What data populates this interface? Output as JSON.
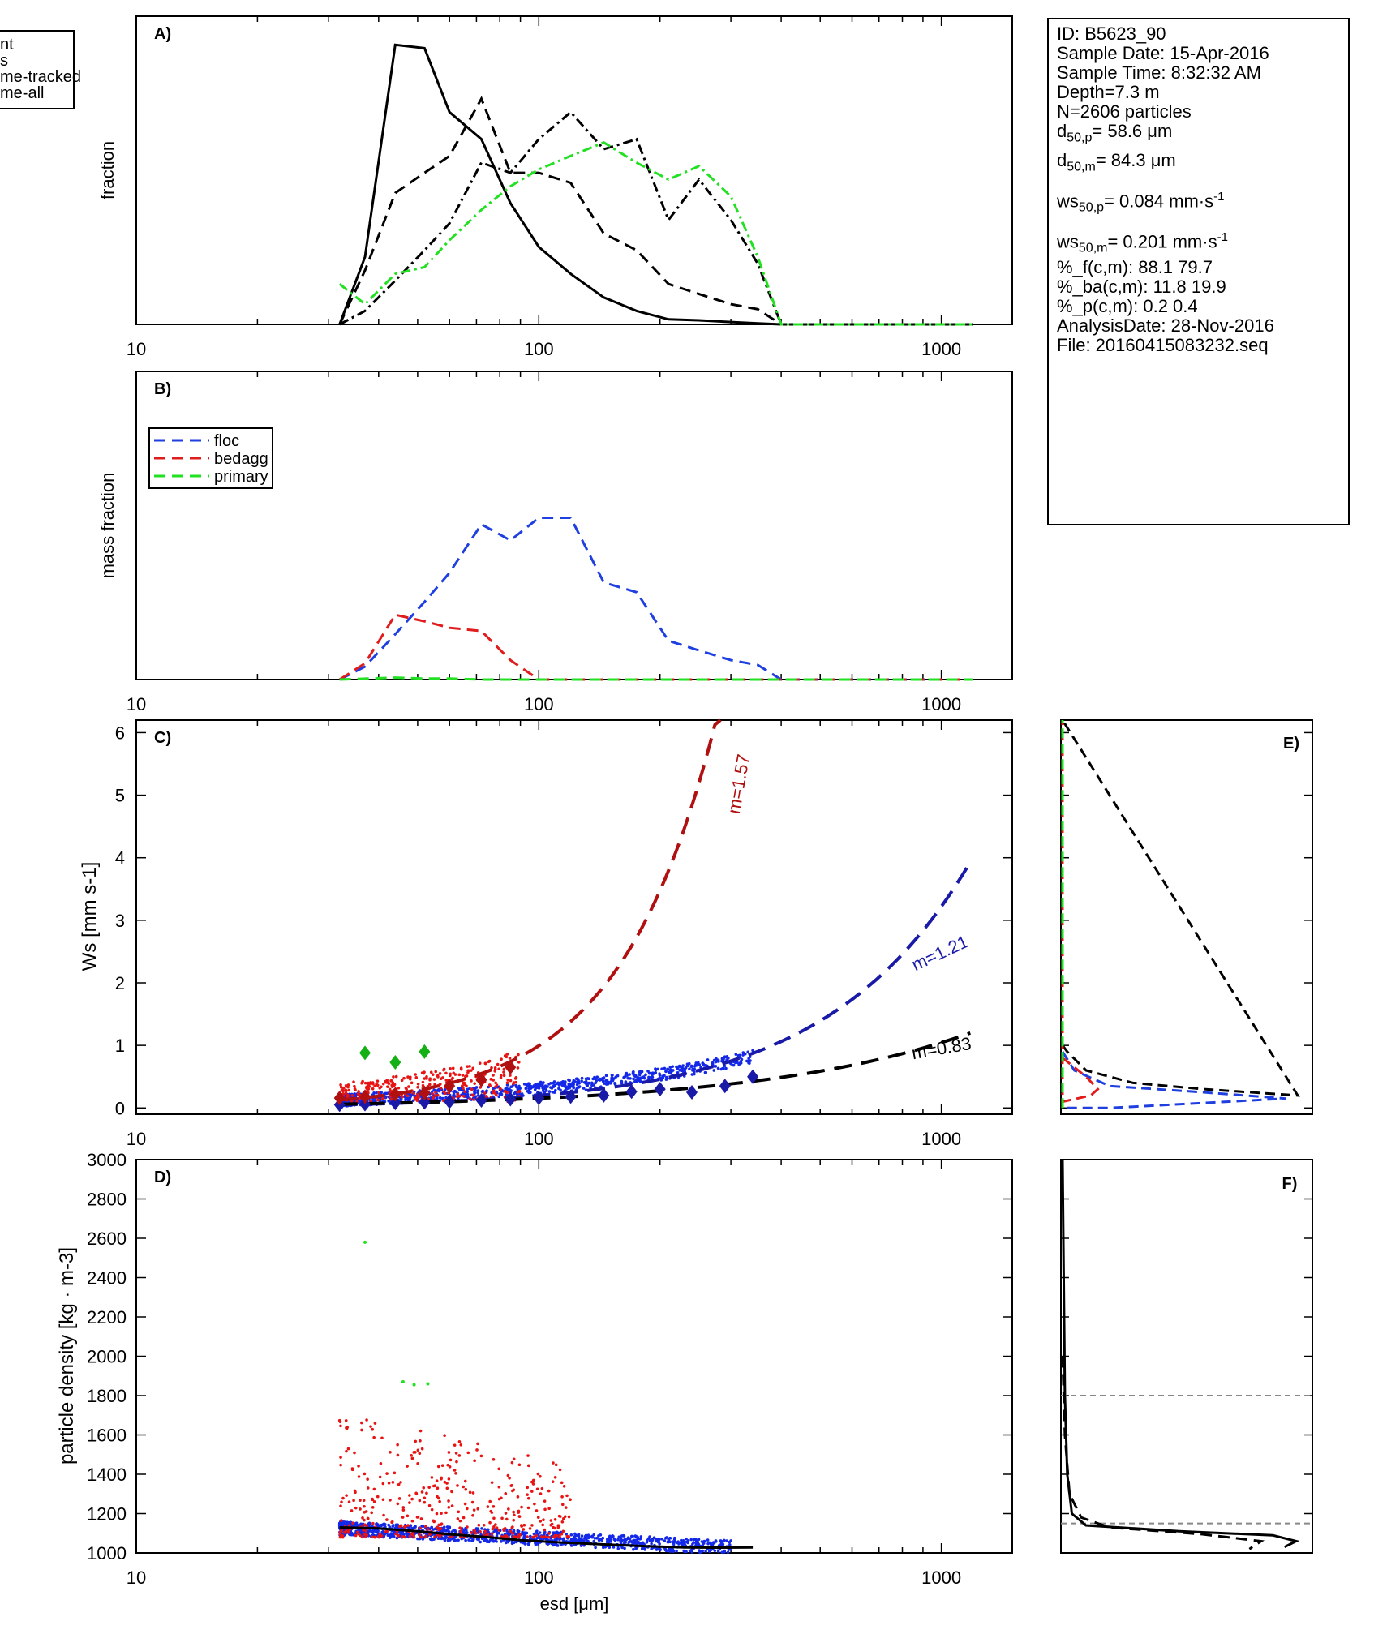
{
  "info": {
    "id": "ID: B5623_90",
    "sample_date": "Sample Date: 15-Apr-2016",
    "sample_time": "Sample Time:  8:32:32 AM",
    "depth": "Depth=7.3 m",
    "n": "N=2606 particles",
    "d50p_prefix": "d",
    "d50p_sub": "50,p",
    "d50p_value": "=  58.6 μm",
    "d50m_prefix": "d",
    "d50m_sub": "50,m",
    "d50m_value": "=  84.3 μm",
    "ws50p_prefix": "ws",
    "ws50p_sub": "50,p",
    "ws50p_value": "= 0.084 mm·s",
    "ws50p_sup": "-1",
    "ws50m_prefix": "ws",
    "ws50m_sub": "50,m",
    "ws50m_value": "= 0.201 mm·s",
    "ws50m_sup": "-1",
    "pf": "%_f(c,m): 88.1 79.7",
    "pba": "%_ba(c,m): 11.8 19.9",
    "pp": "%_p(c,m): 0.2 0.4",
    "analysis_date": "AnalysisDate: 28-Nov-2016",
    "file": "File: 20160415083232.seq"
  },
  "chart_data": [
    {
      "panel": "A)",
      "type": "line",
      "ylabel": "fraction",
      "xscale": "log",
      "xlim": [
        10,
        1500
      ],
      "xticks": [
        "10",
        "100",
        "1000"
      ],
      "legend": {
        "placement": "top-left",
        "entries": [
          "nt",
          "s",
          "me-tracked",
          "me-all"
        ]
      },
      "series": [
        {
          "style": "solid",
          "color": "#000000",
          "x": [
            32,
            37,
            44,
            52,
            60,
            72,
            85,
            100,
            120,
            145,
            175,
            210,
            250,
            300,
            350,
            400,
            1200
          ],
          "y": [
            0.0,
            0.2,
            0.83,
            0.82,
            0.63,
            0.55,
            0.36,
            0.23,
            0.15,
            0.08,
            0.04,
            0.015,
            0.012,
            0.007,
            0.003,
            0.0,
            0.0
          ]
        },
        {
          "style": "dashed",
          "color": "#000000",
          "x": [
            32,
            37,
            44,
            52,
            60,
            72,
            85,
            100,
            120,
            145,
            175,
            210,
            250,
            300,
            350,
            400,
            1200
          ],
          "y": [
            0.0,
            0.16,
            0.39,
            0.45,
            0.5,
            0.67,
            0.45,
            0.45,
            0.42,
            0.27,
            0.22,
            0.12,
            0.09,
            0.06,
            0.045,
            0.0,
            0.0
          ]
        },
        {
          "style": "dashdot",
          "color": "#000000",
          "x": [
            32,
            37,
            44,
            52,
            60,
            72,
            85,
            100,
            120,
            145,
            175,
            210,
            250,
            300,
            350,
            400,
            1200
          ],
          "y": [
            0.0,
            0.04,
            0.13,
            0.22,
            0.3,
            0.48,
            0.45,
            0.55,
            0.63,
            0.52,
            0.55,
            0.31,
            0.43,
            0.31,
            0.18,
            0.0,
            0.0
          ]
        },
        {
          "style": "dashdot",
          "color": "#22e022",
          "x": [
            32,
            37,
            44,
            52,
            60,
            72,
            85,
            100,
            120,
            145,
            175,
            210,
            250,
            300,
            350,
            400,
            1200
          ],
          "y": [
            0.12,
            0.06,
            0.15,
            0.17,
            0.25,
            0.34,
            0.41,
            0.46,
            0.5,
            0.54,
            0.48,
            0.43,
            0.47,
            0.38,
            0.2,
            0.0,
            0.0
          ]
        }
      ]
    },
    {
      "panel": "B)",
      "type": "line",
      "ylabel": "mass fraction",
      "xscale": "log",
      "xlim": [
        10,
        1500
      ],
      "xticks": [
        "10",
        "100",
        "1000"
      ],
      "legend": {
        "placement": "top-left",
        "entries": [
          "floc",
          "bedagg",
          "primary"
        ]
      },
      "series": [
        {
          "name": "floc",
          "style": "dashed",
          "color": "#1f3fe0",
          "x": [
            32,
            37,
            44,
            52,
            60,
            72,
            85,
            100,
            120,
            145,
            175,
            210,
            250,
            300,
            350,
            400,
            1200
          ],
          "y": [
            0.0,
            0.04,
            0.14,
            0.24,
            0.33,
            0.48,
            0.43,
            0.5,
            0.5,
            0.3,
            0.27,
            0.12,
            0.09,
            0.06,
            0.045,
            0.0,
            0.0
          ]
        },
        {
          "name": "bedagg",
          "style": "dashed",
          "color": "#e01c1c",
          "x": [
            32,
            37,
            44,
            52,
            60,
            72,
            85,
            100,
            120,
            1200
          ],
          "y": [
            0.0,
            0.05,
            0.2,
            0.18,
            0.16,
            0.15,
            0.06,
            0.0,
            0.0,
            0.0
          ]
        },
        {
          "name": "primary",
          "style": "dashed",
          "color": "#22e022",
          "x": [
            32,
            44,
            52,
            60,
            72,
            1200
          ],
          "y": [
            0.0,
            0.006,
            0.003,
            0.003,
            0.0,
            0.0
          ]
        }
      ]
    },
    {
      "panel": "C)",
      "type": "scatter",
      "ylabel": "Ws [mm s-1]",
      "xscale": "log",
      "xlim": [
        10,
        1500
      ],
      "ylim": [
        -0.1,
        6.2
      ],
      "xticks": [
        "10",
        "100",
        "1000"
      ],
      "yticks": [
        "0",
        "1",
        "2",
        "3",
        "4",
        "5",
        "6"
      ],
      "fits": [
        {
          "label": "m=1.57",
          "color": "#b01010",
          "style": "dashed",
          "a": 0.127,
          "b": 0.5,
          "x": [
            32,
            400
          ]
        },
        {
          "label": "m=1.21",
          "color": "#1a1aa8",
          "style": "dashed",
          "a": 0.0368,
          "b": 0.21,
          "x": [
            32,
            1180
          ]
        },
        {
          "label": "m=0.83",
          "color": "#000000",
          "style": "dashed",
          "a": -0.083,
          "b": 0.04,
          "x": [
            32,
            1180
          ]
        }
      ],
      "bin_means": [
        {
          "group": "floc",
          "color": "#1a1aa8",
          "x": [
            32,
            37,
            44,
            52,
            60,
            72,
            85,
            100,
            120,
            145,
            170,
            200,
            240,
            290,
            340
          ],
          "y": [
            0.05,
            0.06,
            0.08,
            0.09,
            0.1,
            0.12,
            0.14,
            0.16,
            0.18,
            0.2,
            0.26,
            0.3,
            0.25,
            0.35,
            0.5
          ]
        },
        {
          "group": "bedagg",
          "color": "#b01010",
          "x": [
            32,
            37,
            44,
            52,
            60,
            72,
            85
          ],
          "y": [
            0.16,
            0.18,
            0.22,
            0.24,
            0.35,
            0.45,
            0.65
          ]
        },
        {
          "group": "primary",
          "color": "#14b014",
          "x": [
            37,
            44,
            52
          ],
          "y": [
            0.88,
            0.73,
            0.9
          ]
        }
      ]
    },
    {
      "panel": "D)",
      "type": "scatter",
      "xlabel": "esd [μm]",
      "ylabel": "particle density [kg · m-3]",
      "xscale": "log",
      "xlim": [
        10,
        1500
      ],
      "ylim": [
        1000,
        3000
      ],
      "xticks": [
        "10",
        "100",
        "1000"
      ],
      "yticks": [
        "1000",
        "1200",
        "1400",
        "1600",
        "1800",
        "2000",
        "2200",
        "2400",
        "2600",
        "2800",
        "3000"
      ],
      "trend": {
        "color": "#000000",
        "x": [
          32,
          40,
          50,
          60,
          75,
          90,
          110,
          140,
          180,
          230,
          280,
          340
        ],
        "y": [
          1130,
          1125,
          1110,
          1095,
          1080,
          1065,
          1055,
          1045,
          1035,
          1028,
          1027,
          1028
        ]
      },
      "primary_points": {
        "color": "#22e022",
        "x": [
          37,
          46,
          49,
          53
        ],
        "y": [
          2580,
          1870,
          1855,
          1860
        ]
      }
    },
    {
      "panel": "E)",
      "type": "line",
      "ylim": [
        -0.1,
        6.2
      ],
      "series": [
        {
          "style": "dashed",
          "color": "#000000",
          "x": [
            0,
            0.02,
            0.1,
            0.3,
            0.6,
            1.0,
            0.0
          ],
          "y": [
            1.0,
            0.9,
            0.6,
            0.4,
            0.3,
            0.2,
            6.2
          ]
        },
        {
          "style": "dashed",
          "color": "#1f3fe0",
          "x": [
            0,
            0.05,
            0.2,
            0.6,
            0.95,
            0.2,
            0.0
          ],
          "y": [
            0.9,
            0.6,
            0.35,
            0.25,
            0.15,
            0.0,
            0.0
          ]
        },
        {
          "style": "dashed",
          "color": "#e01c1c",
          "x": [
            0,
            0.1,
            0.15,
            0.12,
            0.0,
            0.0
          ],
          "y": [
            0.8,
            0.5,
            0.3,
            0.2,
            0.1,
            6.2
          ]
        },
        {
          "style": "dashed",
          "color": "#22e022",
          "x": [
            0.0,
            0.0
          ],
          "y": [
            0.0,
            6.2
          ]
        }
      ]
    },
    {
      "panel": "F)",
      "type": "line",
      "ylim": [
        1000,
        3000
      ],
      "reference_lines": [
        1800,
        1150
      ],
      "series": [
        {
          "style": "solid",
          "color": "#000000",
          "x": [
            0.0,
            0.01,
            0.02,
            0.04,
            0.1,
            0.5,
            0.9,
            1.0,
            0.95
          ],
          "y": [
            3000,
            1800,
            1400,
            1200,
            1140,
            1110,
            1090,
            1060,
            1030
          ]
        },
        {
          "style": "dashed",
          "color": "#000000",
          "x": [
            0.0,
            0.01,
            0.03,
            0.08,
            0.2,
            0.6,
            0.85,
            0.8
          ],
          "y": [
            2000,
            1600,
            1300,
            1180,
            1130,
            1095,
            1060,
            1020
          ]
        }
      ]
    }
  ]
}
